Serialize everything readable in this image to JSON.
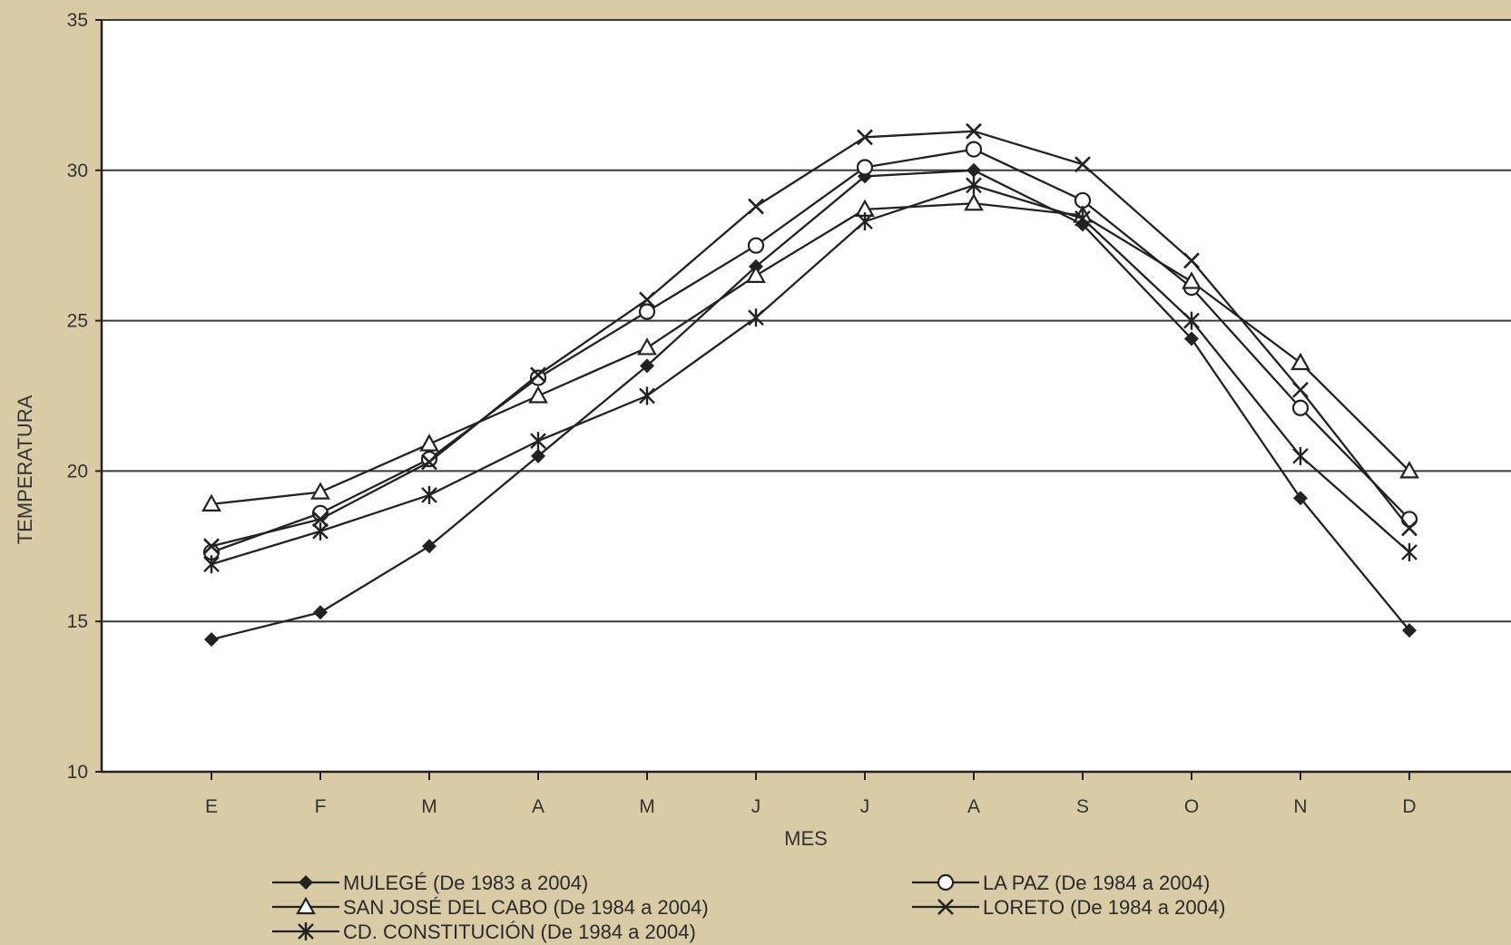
{
  "chart_data": {
    "type": "line",
    "title": "",
    "xlabel": "MES",
    "ylabel": "TEMPERATURA",
    "ylim": [
      10,
      35
    ],
    "yticks": [
      10,
      15,
      20,
      25,
      30,
      35
    ],
    "grid": "horizontal",
    "legend_position": "bottom",
    "categories": [
      "E",
      "F",
      "M",
      "A",
      "M",
      "J",
      "J",
      "A",
      "S",
      "O",
      "N",
      "D"
    ],
    "series": [
      {
        "name": "MULEGÉ (De 1983 a 2004)",
        "marker": "filled-diamond",
        "values": [
          14.4,
          15.3,
          17.5,
          20.5,
          23.5,
          26.8,
          29.8,
          30.0,
          28.2,
          24.4,
          19.1,
          14.7
        ]
      },
      {
        "name": "LA PAZ (De 1984 a 2004)",
        "marker": "open-circle",
        "values": [
          17.3,
          18.6,
          20.4,
          23.1,
          25.3,
          27.5,
          30.1,
          30.7,
          29.0,
          26.1,
          22.1,
          18.4
        ]
      },
      {
        "name": "SAN JOSÉ DEL CABO (De 1984 a 2004)",
        "marker": "open-triangle",
        "values": [
          18.9,
          19.3,
          20.9,
          22.5,
          24.1,
          26.5,
          28.7,
          28.9,
          28.5,
          26.3,
          23.6,
          20.0
        ]
      },
      {
        "name": "LORETO (De 1984 a 2004)",
        "marker": "x",
        "values": [
          17.5,
          18.4,
          20.3,
          23.2,
          25.7,
          28.8,
          31.1,
          31.3,
          30.2,
          27.0,
          22.7,
          18.1
        ]
      },
      {
        "name": "CD. CONSTITUCIÓN (De 1984 a 2004)",
        "marker": "asterisk",
        "values": [
          16.9,
          18.0,
          19.2,
          21.0,
          22.5,
          25.1,
          28.3,
          29.5,
          28.4,
          25.0,
          20.5,
          17.3
        ]
      }
    ]
  }
}
